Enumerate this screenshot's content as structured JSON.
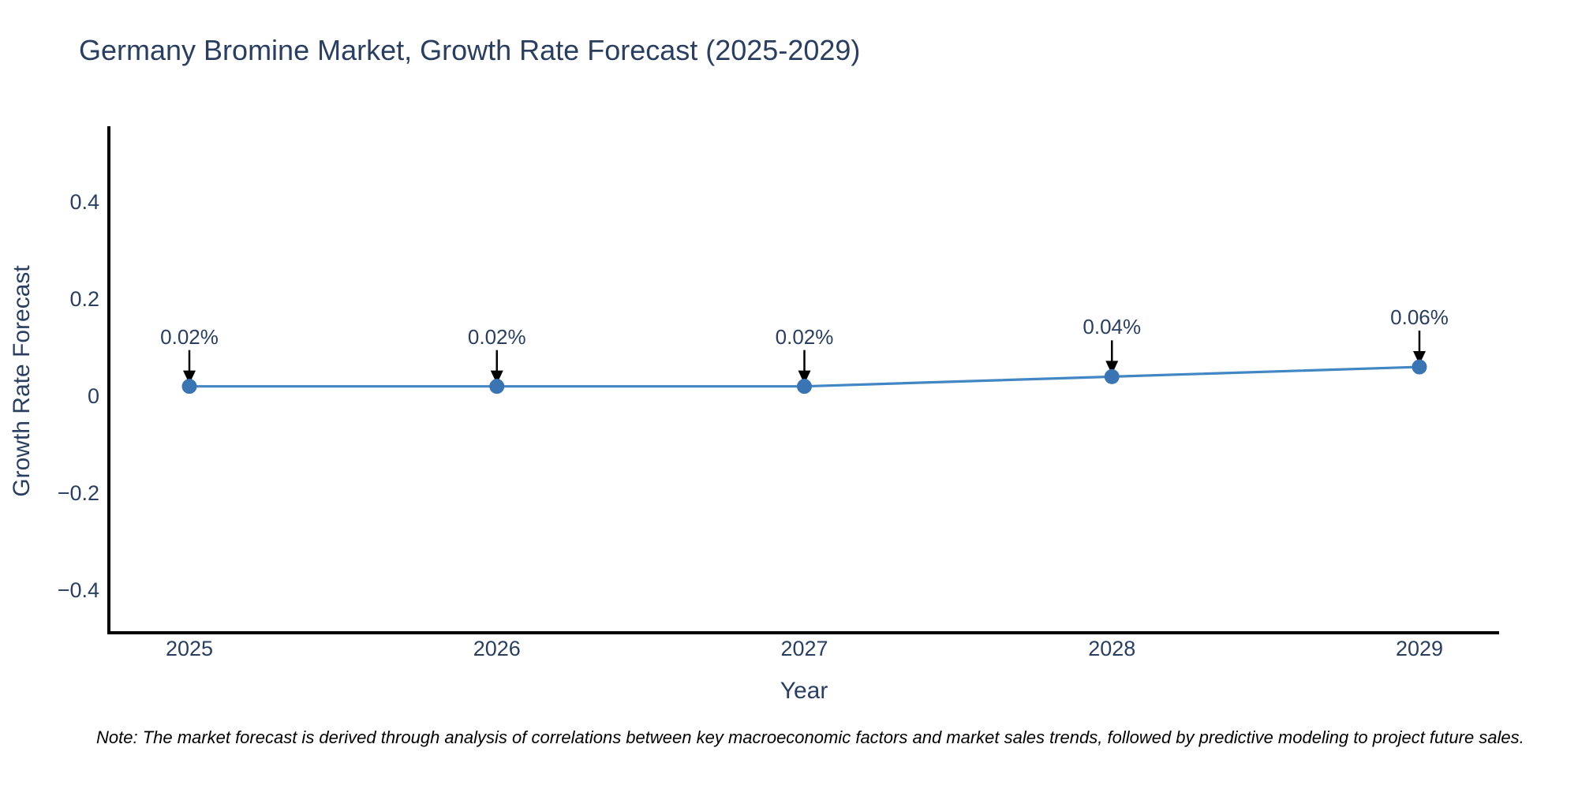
{
  "chart": {
    "title": "Germany Bromine Market, Growth Rate Forecast (2025-2029)",
    "note": "Note: The market forecast is derived through analysis of correlations between key macroeconomic factors and market sales trends, followed by predictive modeling to project future sales."
  },
  "chart_data": {
    "type": "line",
    "title": "Germany Bromine Market, Growth Rate Forecast (2025-2029)",
    "xlabel": "Year",
    "ylabel": "Growth Rate Forecast",
    "x": [
      2025,
      2026,
      2027,
      2028,
      2029
    ],
    "series": [
      {
        "name": "Growth Rate Forecast",
        "values": [
          0.02,
          0.02,
          0.02,
          0.04,
          0.06
        ]
      }
    ],
    "point_labels": [
      "0.02%",
      "0.02%",
      "0.02%",
      "0.04%",
      "0.06%"
    ],
    "xtick_labels": [
      "2025",
      "2026",
      "2027",
      "2028",
      "2029"
    ],
    "ytick_values": [
      0.4,
      0.2,
      0,
      -0.2,
      -0.4
    ],
    "ytick_labels": [
      "0.4",
      "0.2",
      "0",
      "−0.2",
      "−0.4"
    ],
    "ylim": [
      -0.48,
      0.55
    ],
    "grid": false,
    "legend": false,
    "annotation_arrows": true,
    "colors": {
      "line": "#4287c4",
      "marker": "#3a74b3",
      "arrow": "#000000",
      "axis": "#000000",
      "text": "#2a3f5f",
      "background": "#ffffff"
    }
  }
}
